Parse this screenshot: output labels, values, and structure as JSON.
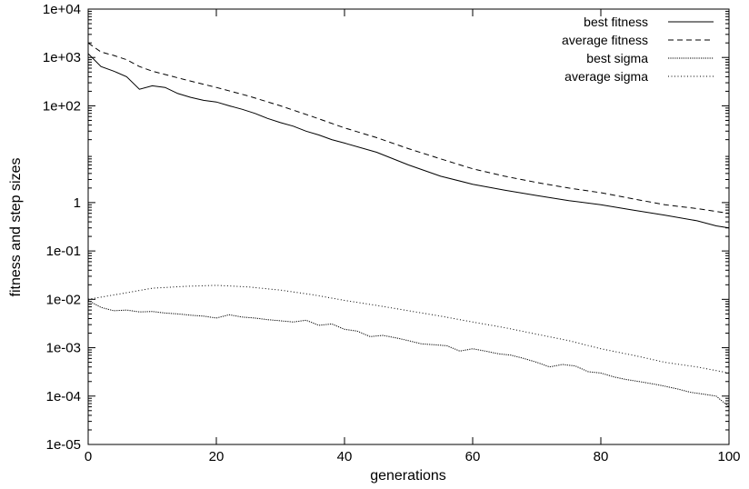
{
  "chart_data": {
    "type": "line",
    "title": "",
    "xlabel": "generations",
    "ylabel": "fitness and step sizes",
    "xlim": [
      0,
      100
    ],
    "ylim": [
      1e-05,
      10000
    ],
    "yscale": "log",
    "grid": false,
    "legend_position": "top-right",
    "x_ticks": [
      0,
      20,
      40,
      60,
      80,
      100
    ],
    "x_tick_labels": [
      "0",
      "20",
      "40",
      "60",
      "80",
      "100"
    ],
    "y_ticks": [
      1e-05,
      0.0001,
      0.001,
      0.01,
      0.1,
      1,
      100,
      1000,
      10000
    ],
    "y_tick_labels": [
      "1e-05",
      "1e-04",
      "1e-03",
      "1e-02",
      "1e-01",
      "1",
      "1e+02",
      "1e+03",
      "1e+04"
    ],
    "series": [
      {
        "name": "best fitness",
        "dash": "",
        "x": [
          0,
          2,
          4,
          6,
          8,
          10,
          12,
          14,
          16,
          18,
          20,
          22,
          24,
          26,
          28,
          30,
          32,
          34,
          36,
          38,
          40,
          45,
          50,
          55,
          60,
          65,
          70,
          75,
          80,
          85,
          90,
          95,
          98,
          100
        ],
        "y": [
          1200,
          650,
          520,
          400,
          220,
          260,
          240,
          180,
          150,
          130,
          120,
          100,
          85,
          70,
          55,
          45,
          38,
          30,
          25,
          20,
          17,
          11,
          6,
          3.5,
          2.4,
          1.8,
          1.4,
          1.1,
          0.9,
          0.7,
          0.55,
          0.42,
          0.33,
          0.3
        ]
      },
      {
        "name": "average fitness",
        "dash": "6,4",
        "x": [
          0,
          2,
          4,
          6,
          8,
          10,
          15,
          20,
          25,
          30,
          35,
          40,
          45,
          50,
          55,
          60,
          65,
          70,
          75,
          80,
          85,
          90,
          95,
          100
        ],
        "y": [
          2000,
          1300,
          1100,
          900,
          650,
          520,
          350,
          240,
          160,
          100,
          60,
          35,
          22,
          13,
          8,
          5,
          3.5,
          2.6,
          2,
          1.6,
          1.2,
          0.9,
          0.75,
          0.6
        ]
      },
      {
        "name": "best sigma",
        "dash": "1.2,1.2",
        "x": [
          0,
          2,
          4,
          6,
          8,
          10,
          12,
          14,
          16,
          18,
          20,
          22,
          24,
          26,
          28,
          30,
          32,
          34,
          36,
          38,
          40,
          42,
          44,
          46,
          48,
          50,
          52,
          54,
          56,
          58,
          60,
          62,
          64,
          66,
          68,
          70,
          72,
          74,
          76,
          78,
          80,
          82,
          84,
          86,
          88,
          90,
          92,
          94,
          96,
          98,
          100
        ],
        "y": [
          0.0095,
          0.0068,
          0.0058,
          0.006,
          0.0055,
          0.0056,
          0.0052,
          0.005,
          0.0047,
          0.0045,
          0.0041,
          0.0048,
          0.0043,
          0.0041,
          0.0038,
          0.0036,
          0.0034,
          0.0037,
          0.0029,
          0.0031,
          0.0024,
          0.0022,
          0.0017,
          0.0018,
          0.0016,
          0.0014,
          0.0012,
          0.00115,
          0.0011,
          0.00085,
          0.00095,
          0.00085,
          0.00075,
          0.0007,
          0.0006,
          0.0005,
          0.0004,
          0.00045,
          0.00042,
          0.00032,
          0.0003,
          0.00025,
          0.00022,
          0.0002,
          0.00018,
          0.00016,
          0.00014,
          0.00012,
          0.00011,
          0.0001,
          6e-05
        ]
      },
      {
        "name": "average sigma",
        "dash": "1,2.5",
        "x": [
          0,
          5,
          10,
          15,
          20,
          25,
          30,
          35,
          40,
          45,
          50,
          55,
          60,
          65,
          70,
          75,
          80,
          85,
          90,
          95,
          100
        ],
        "y": [
          0.01,
          0.013,
          0.017,
          0.0185,
          0.0195,
          0.018,
          0.0155,
          0.0125,
          0.0095,
          0.0075,
          0.0058,
          0.0045,
          0.0034,
          0.0026,
          0.0019,
          0.0014,
          0.00095,
          0.0007,
          0.0005,
          0.0004,
          0.0003
        ]
      }
    ]
  }
}
